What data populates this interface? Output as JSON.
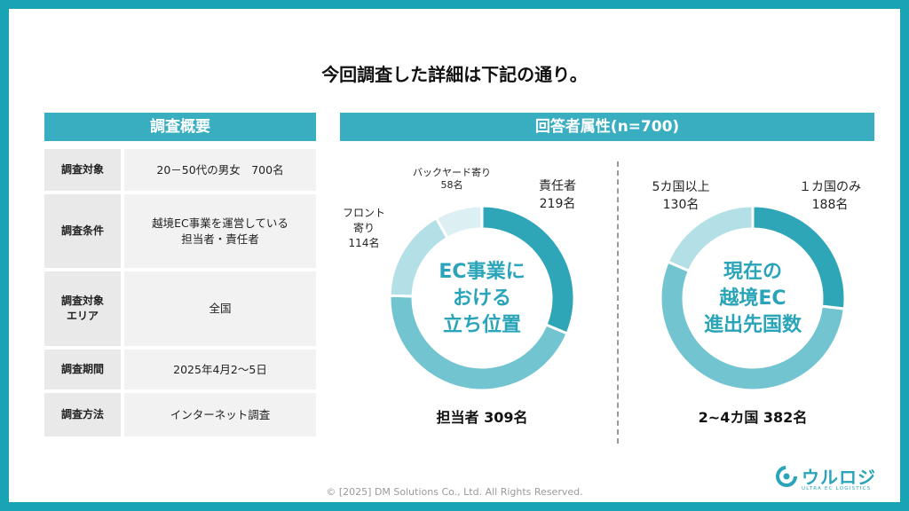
{
  "title": "今回調査した詳細は下記の通り。",
  "left_panel": {
    "header": "調査概要",
    "rows": [
      {
        "key": "調査対象",
        "value": "20－50代の男女　700名"
      },
      {
        "key": "調査条件",
        "value": "越境EC事業を運営している\n担当者・責任者"
      },
      {
        "key": "調査対象\nエリア",
        "value": "全国"
      },
      {
        "key": "調査期間",
        "value": "2025年4月2～5日"
      },
      {
        "key": "調査方法",
        "value": "インターネット調査"
      }
    ]
  },
  "right_panel": {
    "header": "回答者属性(n=700)"
  },
  "chart_data": [
    {
      "type": "pie",
      "title": "EC事業に\nおける\n立ち位置",
      "categories": [
        "責任者",
        "担当者",
        "フロント\n寄り",
        "バックヤード寄り"
      ],
      "values": [
        219,
        309,
        114,
        58
      ],
      "value_labels": [
        "219名",
        "309名",
        "114名",
        "58名"
      ],
      "colors": [
        "#2fa6b8",
        "#72c4d0",
        "#b3dfe6",
        "#dcf0f3"
      ]
    },
    {
      "type": "pie",
      "title": "現在の\n越境EC\n進出先国数",
      "categories": [
        "１カ国のみ",
        "2~4カ国",
        "5カ国以上"
      ],
      "values": [
        188,
        382,
        130
      ],
      "value_labels": [
        "188名",
        "382名",
        "130名"
      ],
      "colors": [
        "#2fa6b8",
        "#72c4d0",
        "#b3dfe6"
      ]
    }
  ],
  "labels": {
    "c1_owner": "責任者\n219名",
    "c1_staff": "担当者 309名",
    "c1_front": "フロント\n寄り\n114名",
    "c1_back": "バックヤード寄り\n58名",
    "c2_one": "１カ国のみ\n188名",
    "c2_mid": "2~4カ国 382名",
    "c2_five": "5カ国以上\n130名"
  },
  "copyright": "© [2025] DM Solutions Co., Ltd. All Rights Reserved.",
  "logo": {
    "name": "ウルロジ",
    "tagline": "ULTRA EC LOGISTICS"
  }
}
